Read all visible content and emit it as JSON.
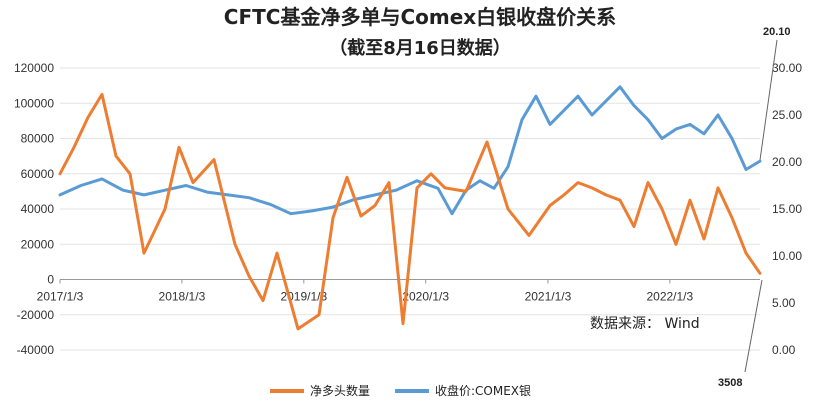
{
  "chart_data": {
    "type": "line",
    "title": "CFTC基金净多单与Comex白银收盘价关系",
    "subtitle": "（截至8月16日数据）",
    "source": "数据来源：  Wind",
    "x_ticks": [
      "2017/1/3",
      "2018/1/3",
      "2019/1/3",
      "2020/1/3",
      "2021/1/3",
      "2022/1/3"
    ],
    "x_range": [
      "2017/1/3",
      "2022/9/30"
    ],
    "y_left": {
      "range": [
        -40000,
        120000
      ],
      "ticks": [
        "-40000",
        "-20000",
        "0",
        "20000",
        "40000",
        "60000",
        "80000",
        "100000",
        "120000"
      ]
    },
    "y_right": {
      "range": [
        0,
        30
      ],
      "ticks": [
        "0.00",
        "5.00",
        "10.00",
        "15.00",
        "20.00",
        "25.00",
        "30.00"
      ]
    },
    "annotations": {
      "top_right": "20.10",
      "bottom_right": "3508"
    },
    "grid": true,
    "legend_position": "bottom",
    "colors": {
      "net_long": "#ED7D31",
      "close_price": "#5B9BD5"
    },
    "series": [
      {
        "name": "净多头数量",
        "axis": "left",
        "t": [
          0,
          0.02,
          0.04,
          0.06,
          0.08,
          0.1,
          0.12,
          0.15,
          0.17,
          0.19,
          0.22,
          0.25,
          0.27,
          0.29,
          0.31,
          0.34,
          0.37,
          0.39,
          0.41,
          0.43,
          0.45,
          0.47,
          0.49,
          0.51,
          0.53,
          0.55,
          0.58,
          0.61,
          0.64,
          0.67,
          0.7,
          0.72,
          0.74,
          0.76,
          0.78,
          0.8,
          0.82,
          0.84,
          0.86,
          0.88,
          0.9,
          0.92,
          0.94,
          0.96,
          0.98,
          1
        ],
        "values": [
          60000,
          75000,
          92000,
          105000,
          70000,
          60000,
          15000,
          40000,
          75000,
          55000,
          68000,
          20000,
          2000,
          -12000,
          15000,
          -28000,
          -20000,
          35000,
          58000,
          36000,
          42000,
          55000,
          -25000,
          52000,
          60000,
          52000,
          50000,
          78000,
          40000,
          25000,
          42000,
          48000,
          55000,
          52000,
          48000,
          45000,
          30000,
          55000,
          40000,
          20000,
          45000,
          23000,
          52000,
          35000,
          15000,
          3508
        ],
        "last_value": 3508
      },
      {
        "name": "收盘价:COMEX银",
        "axis": "right",
        "t": [
          0,
          0.03,
          0.06,
          0.09,
          0.12,
          0.15,
          0.18,
          0.21,
          0.24,
          0.27,
          0.3,
          0.33,
          0.36,
          0.39,
          0.42,
          0.45,
          0.48,
          0.51,
          0.54,
          0.56,
          0.58,
          0.6,
          0.62,
          0.64,
          0.66,
          0.68,
          0.7,
          0.72,
          0.74,
          0.76,
          0.78,
          0.8,
          0.82,
          0.84,
          0.86,
          0.88,
          0.9,
          0.92,
          0.94,
          0.96,
          0.98,
          1
        ],
        "values": [
          16.5,
          17.5,
          18.2,
          17.0,
          16.5,
          17.0,
          17.5,
          16.8,
          16.5,
          16.2,
          15.5,
          14.5,
          14.8,
          15.2,
          16.0,
          16.5,
          17.0,
          18.0,
          17.2,
          14.5,
          17.0,
          18.0,
          17.2,
          19.5,
          24.5,
          27.0,
          24.0,
          25.5,
          27.0,
          25.0,
          26.5,
          28.0,
          26.0,
          24.5,
          22.5,
          23.5,
          24.0,
          23.0,
          25.0,
          22.5,
          19.2,
          20.1
        ],
        "last_value": 20.1
      }
    ]
  }
}
